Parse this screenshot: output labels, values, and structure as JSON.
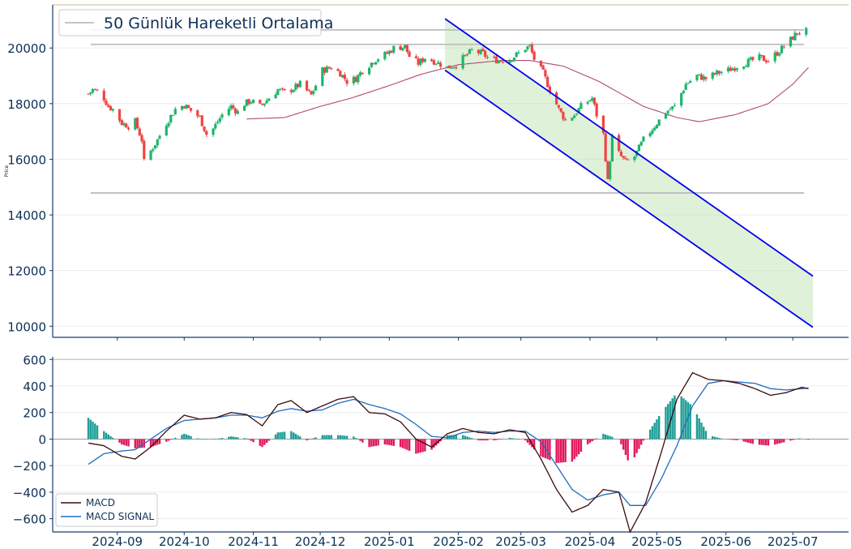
{
  "chart_data": [
    {
      "type": "candlestick",
      "ylabel": "Price",
      "ylim": [
        9600,
        21550
      ],
      "yticks": [
        "10000",
        "12000",
        "14000",
        "16000",
        "18000",
        "20000"
      ],
      "legend": {
        "label": "50 Günlük Hareketli Ortalama",
        "placement": "top-left"
      },
      "horizontal_levels": [
        20650,
        20130,
        14790
      ],
      "channel": {
        "upper": {
          "start": [
            "2025-01-26",
            21050
          ],
          "end": [
            "2025-07-10",
            11800
          ]
        },
        "lower": {
          "start": [
            "2025-01-26",
            19200
          ],
          "end": [
            "2025-07-10",
            9960
          ]
        }
      },
      "ohlc_anchors": [
        [
          "2024-08-19",
          18350
        ],
        [
          "2024-08-21",
          18500
        ],
        [
          "2024-08-23",
          18450
        ],
        [
          "2024-08-26",
          18200
        ],
        [
          "2024-08-28",
          17900
        ],
        [
          "2024-08-30",
          17800
        ],
        [
          "2024-09-03",
          17300
        ],
        [
          "2024-09-06",
          17200
        ],
        [
          "2024-09-09",
          17350
        ],
        [
          "2024-09-12",
          16700
        ],
        [
          "2024-09-13",
          15900
        ],
        [
          "2024-09-16",
          16300
        ],
        [
          "2024-09-19",
          16700
        ],
        [
          "2024-09-23",
          17300
        ],
        [
          "2024-09-27",
          17800
        ],
        [
          "2024-10-01",
          17950
        ],
        [
          "2024-10-04",
          17750
        ],
        [
          "2024-10-08",
          17500
        ],
        [
          "2024-10-11",
          16900
        ],
        [
          "2024-10-14",
          17100
        ],
        [
          "2024-10-18",
          17600
        ],
        [
          "2024-10-22",
          17900
        ],
        [
          "2024-10-25",
          17700
        ],
        [
          "2024-10-28",
          18000
        ],
        [
          "2024-10-31",
          18100
        ],
        [
          "2024-11-04",
          17900
        ],
        [
          "2024-11-08",
          18200
        ],
        [
          "2024-11-12",
          18500
        ],
        [
          "2024-11-15",
          18400
        ],
        [
          "2024-11-19",
          18550
        ],
        [
          "2024-11-22",
          18700
        ],
        [
          "2024-11-27",
          18300
        ],
        [
          "2024-12-02",
          19200
        ],
        [
          "2024-12-06",
          19300
        ],
        [
          "2024-12-10",
          19100
        ],
        [
          "2024-12-13",
          18800
        ],
        [
          "2024-12-17",
          18900
        ],
        [
          "2024-12-20",
          19200
        ],
        [
          "2024-12-26",
          19600
        ],
        [
          "2024-12-31",
          19800
        ],
        [
          "2025-01-03",
          20000
        ],
        [
          "2025-01-08",
          20050
        ],
        [
          "2025-01-10",
          19700
        ],
        [
          "2025-01-14",
          19450
        ],
        [
          "2025-01-17",
          19650
        ],
        [
          "2025-01-22",
          19500
        ],
        [
          "2025-01-27",
          19300
        ],
        [
          "2025-01-31",
          19400
        ],
        [
          "2025-02-04",
          19700
        ],
        [
          "2025-02-07",
          19900
        ],
        [
          "2025-02-12",
          19800
        ],
        [
          "2025-02-14",
          19650
        ],
        [
          "2025-02-19",
          19550
        ],
        [
          "2025-02-24",
          19600
        ],
        [
          "2025-02-27",
          19750
        ],
        [
          "2025-03-03",
          20000
        ],
        [
          "2025-03-05",
          20050
        ],
        [
          "2025-03-07",
          19600
        ],
        [
          "2025-03-11",
          19100
        ],
        [
          "2025-03-14",
          18500
        ],
        [
          "2025-03-18",
          17800
        ],
        [
          "2025-03-21",
          17400
        ],
        [
          "2025-03-25",
          17600
        ],
        [
          "2025-03-28",
          17900
        ],
        [
          "2025-04-02",
          18200
        ],
        [
          "2025-04-04",
          17600
        ],
        [
          "2025-04-07",
          16900
        ],
        [
          "2025-04-09",
          15200
        ],
        [
          "2025-04-11",
          16800
        ],
        [
          "2025-04-14",
          16200
        ],
        [
          "2025-04-17",
          15900
        ],
        [
          "2025-04-21",
          16100
        ],
        [
          "2025-04-25",
          16700
        ],
        [
          "2025-04-30",
          17200
        ],
        [
          "2025-05-05",
          17700
        ],
        [
          "2025-05-09",
          17900
        ],
        [
          "2025-05-14",
          18700
        ],
        [
          "2025-05-19",
          19000
        ],
        [
          "2025-05-23",
          18900
        ],
        [
          "2025-05-28",
          19100
        ],
        [
          "2025-06-02",
          19200
        ],
        [
          "2025-06-06",
          19350
        ],
        [
          "2025-06-11",
          19500
        ],
        [
          "2025-06-16",
          19650
        ],
        [
          "2025-06-20",
          19550
        ],
        [
          "2025-06-25",
          19900
        ],
        [
          "2025-06-30",
          20300
        ],
        [
          "2025-07-03",
          20550
        ],
        [
          "2025-07-07",
          20600
        ]
      ],
      "ma50_anchors": [
        [
          "2024-10-29",
          17450
        ],
        [
          "2024-11-15",
          17500
        ],
        [
          "2024-12-01",
          17900
        ],
        [
          "2024-12-15",
          18200
        ],
        [
          "2025-01-01",
          18650
        ],
        [
          "2025-01-15",
          19050
        ],
        [
          "2025-02-01",
          19400
        ],
        [
          "2025-02-20",
          19550
        ],
        [
          "2025-03-05",
          19550
        ],
        [
          "2025-03-20",
          19350
        ],
        [
          "2025-04-05",
          18800
        ],
        [
          "2025-04-25",
          17900
        ],
        [
          "2025-05-10",
          17500
        ],
        [
          "2025-05-20",
          17350
        ],
        [
          "2025-06-05",
          17600
        ],
        [
          "2025-06-20",
          18000
        ],
        [
          "2025-07-01",
          18700
        ],
        [
          "2025-07-08",
          19300
        ]
      ]
    },
    {
      "type": "macd",
      "ylim": [
        -700,
        620
      ],
      "yticks": [
        "600",
        "400",
        "200",
        "0",
        "−200",
        "−400",
        "−600"
      ],
      "legend": {
        "labels": [
          "MACD",
          "MACD SIGNAL"
        ],
        "placement": "bottom-left"
      },
      "horizontal_levels": [
        600
      ],
      "macd_anchors": [
        [
          "2024-08-19",
          -30
        ],
        [
          "2024-08-26",
          -50
        ],
        [
          "2024-09-03",
          -130
        ],
        [
          "2024-09-09",
          -150
        ],
        [
          "2024-09-16",
          -60
        ],
        [
          "2024-09-23",
          60
        ],
        [
          "2024-10-01",
          180
        ],
        [
          "2024-10-08",
          150
        ],
        [
          "2024-10-15",
          160
        ],
        [
          "2024-10-22",
          200
        ],
        [
          "2024-10-29",
          185
        ],
        [
          "2024-11-05",
          100
        ],
        [
          "2024-11-12",
          260
        ],
        [
          "2024-11-18",
          290
        ],
        [
          "2024-11-25",
          200
        ],
        [
          "2024-12-02",
          250
        ],
        [
          "2024-12-09",
          300
        ],
        [
          "2024-12-16",
          320
        ],
        [
          "2024-12-23",
          200
        ],
        [
          "2024-12-30",
          190
        ],
        [
          "2025-01-06",
          130
        ],
        [
          "2025-01-13",
          0
        ],
        [
          "2025-01-20",
          -60
        ],
        [
          "2025-01-27",
          40
        ],
        [
          "2025-02-03",
          80
        ],
        [
          "2025-02-10",
          50
        ],
        [
          "2025-02-17",
          40
        ],
        [
          "2025-02-24",
          70
        ],
        [
          "2025-03-03",
          50
        ],
        [
          "2025-03-10",
          -150
        ],
        [
          "2025-03-17",
          -380
        ],
        [
          "2025-03-24",
          -550
        ],
        [
          "2025-03-31",
          -500
        ],
        [
          "2025-04-07",
          -380
        ],
        [
          "2025-04-14",
          -400
        ],
        [
          "2025-04-19",
          -700
        ],
        [
          "2025-04-26",
          -480
        ],
        [
          "2025-05-03",
          -100
        ],
        [
          "2025-05-10",
          300
        ],
        [
          "2025-05-17",
          500
        ],
        [
          "2025-05-24",
          450
        ],
        [
          "2025-05-31",
          440
        ],
        [
          "2025-06-07",
          420
        ],
        [
          "2025-06-14",
          380
        ],
        [
          "2025-06-21",
          330
        ],
        [
          "2025-06-28",
          350
        ],
        [
          "2025-07-05",
          390
        ],
        [
          "2025-07-08",
          380
        ]
      ],
      "signal_anchors": [
        [
          "2024-08-19",
          -190
        ],
        [
          "2024-08-26",
          -110
        ],
        [
          "2024-09-03",
          -90
        ],
        [
          "2024-09-09",
          -80
        ],
        [
          "2024-09-16",
          0
        ],
        [
          "2024-09-23",
          80
        ],
        [
          "2024-10-01",
          140
        ],
        [
          "2024-10-08",
          150
        ],
        [
          "2024-10-15",
          160
        ],
        [
          "2024-10-22",
          180
        ],
        [
          "2024-10-29",
          180
        ],
        [
          "2024-11-05",
          160
        ],
        [
          "2024-11-12",
          210
        ],
        [
          "2024-11-18",
          230
        ],
        [
          "2024-11-25",
          210
        ],
        [
          "2024-12-02",
          220
        ],
        [
          "2024-12-09",
          270
        ],
        [
          "2024-12-16",
          300
        ],
        [
          "2024-12-23",
          260
        ],
        [
          "2024-12-30",
          230
        ],
        [
          "2025-01-06",
          190
        ],
        [
          "2025-01-13",
          110
        ],
        [
          "2025-01-20",
          20
        ],
        [
          "2025-01-27",
          10
        ],
        [
          "2025-02-03",
          50
        ],
        [
          "2025-02-10",
          60
        ],
        [
          "2025-02-17",
          50
        ],
        [
          "2025-02-24",
          60
        ],
        [
          "2025-03-03",
          60
        ],
        [
          "2025-03-10",
          -20
        ],
        [
          "2025-03-17",
          -200
        ],
        [
          "2025-03-24",
          -380
        ],
        [
          "2025-03-31",
          -460
        ],
        [
          "2025-04-07",
          -420
        ],
        [
          "2025-04-14",
          -400
        ],
        [
          "2025-04-19",
          -500
        ],
        [
          "2025-04-26",
          -500
        ],
        [
          "2025-05-03",
          -300
        ],
        [
          "2025-05-10",
          -50
        ],
        [
          "2025-05-17",
          250
        ],
        [
          "2025-05-24",
          420
        ],
        [
          "2025-05-31",
          440
        ],
        [
          "2025-06-07",
          430
        ],
        [
          "2025-06-14",
          420
        ],
        [
          "2025-06-21",
          380
        ],
        [
          "2025-06-28",
          370
        ],
        [
          "2025-07-05",
          380
        ],
        [
          "2025-07-08",
          385
        ]
      ]
    }
  ],
  "x_axis": {
    "min": "2024-08-03",
    "max": "2025-07-26",
    "ticks": [
      {
        "date": "2024-09-01",
        "label": "2024-09"
      },
      {
        "date": "2024-10-01",
        "label": "2024-10"
      },
      {
        "date": "2024-11-01",
        "label": "2024-11"
      },
      {
        "date": "2024-12-01",
        "label": "2024-12"
      },
      {
        "date": "2025-01-01",
        "label": "2025-01"
      },
      {
        "date": "2025-02-01",
        "label": "2025-02"
      },
      {
        "date": "2025-03-01",
        "label": "2025-03"
      },
      {
        "date": "2025-04-01",
        "label": "2025-04"
      },
      {
        "date": "2025-05-01",
        "label": "2025-05"
      },
      {
        "date": "2025-06-01",
        "label": "2025-06"
      },
      {
        "date": "2025-07-01",
        "label": "2025-07"
      }
    ]
  },
  "colors": {
    "up": "#1db56c",
    "down": "#ef4444",
    "ma": "#b04a6e",
    "channel_line": "#0000ee",
    "channel_fill": "#b9dfa9",
    "level_line": "#bdbdbd",
    "top_line": "#d2c7a6",
    "macd": "#3b0a0a",
    "signal": "#1f6cc0",
    "hist_pos": "#1f9e96",
    "hist_neg": "#e0185e",
    "axis": "#1a3a6b",
    "text": "#0d3057"
  }
}
